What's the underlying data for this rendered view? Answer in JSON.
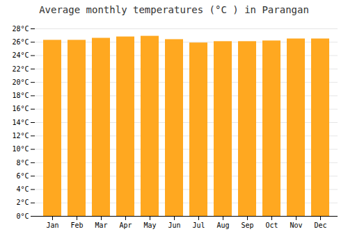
{
  "chart_data": {
    "type": "bar",
    "title": "Average monthly temperatures (°C ) in Parangan",
    "categories": [
      "Jan",
      "Feb",
      "Mar",
      "Apr",
      "May",
      "Jun",
      "Jul",
      "Aug",
      "Sep",
      "Oct",
      "Nov",
      "Dec"
    ],
    "values": [
      26.3,
      26.3,
      26.6,
      26.8,
      26.9,
      26.4,
      25.9,
      26.1,
      26.1,
      26.2,
      26.5,
      26.5
    ],
    "color": "#FFA820",
    "ylim": [
      0,
      28
    ],
    "yticks": [
      {
        "value": 0,
        "label": "0°C"
      },
      {
        "value": 2,
        "label": "2°C"
      },
      {
        "value": 4,
        "label": "4°C"
      },
      {
        "value": 6,
        "label": "6°C"
      },
      {
        "value": 8,
        "label": "8°C"
      },
      {
        "value": 10,
        "label": "10°C"
      },
      {
        "value": 12,
        "label": "12°C"
      },
      {
        "value": 14,
        "label": "14°C"
      },
      {
        "value": 16,
        "label": "16°C"
      },
      {
        "value": 18,
        "label": "18°C"
      },
      {
        "value": 20,
        "label": "20°C"
      },
      {
        "value": 22,
        "label": "22°C"
      },
      {
        "value": 24,
        "label": "24°C"
      },
      {
        "value": 26,
        "label": "26°C"
      },
      {
        "value": 28,
        "label": "28°C"
      }
    ],
    "grid": true
  }
}
